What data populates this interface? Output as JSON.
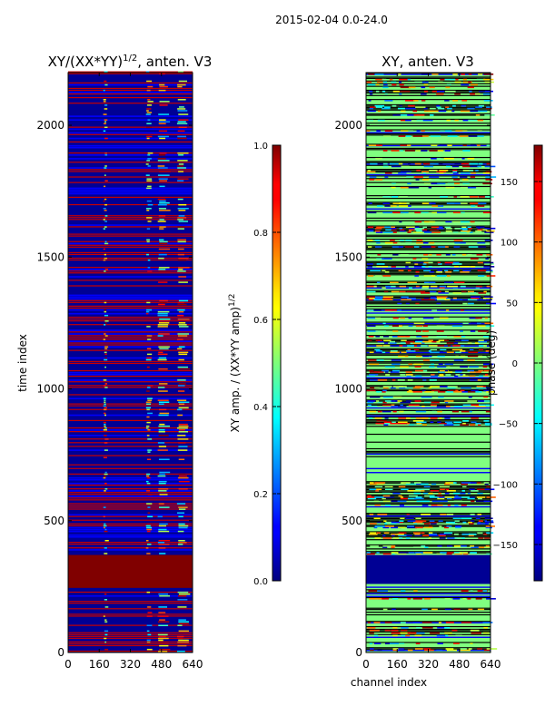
{
  "figure": {
    "suptitle": "2015-02-04 0.0-24.0"
  },
  "chart_data": [
    {
      "type": "heatmap",
      "title_prefix": "XY/(XX*YY)",
      "title_sup": "1/2",
      "title_suffix": ", anten. V3",
      "xlabel": "",
      "ylabel": "time index",
      "xlim": [
        0,
        640
      ],
      "ylim": [
        0,
        2200
      ],
      "xticks": [
        0,
        160,
        320,
        480,
        640
      ],
      "yticks": [
        0,
        500,
        1000,
        1500,
        2000
      ],
      "colorbar": {
        "label_prefix": "XY amp. / (XX*YY amp)",
        "label_sup": "1/2",
        "range": [
          0.0,
          1.0
        ],
        "ticks": [
          0.0,
          0.2,
          0.4,
          0.6,
          0.8,
          1.0
        ],
        "tick_labels": [
          "0.0",
          "0.2",
          "0.4",
          "0.6",
          "0.8",
          "1.0"
        ],
        "colormap": "jet"
      },
      "notable_regions": [
        {
          "description": "saturated block",
          "time_range": [
            245,
            370
          ],
          "value": 1.0
        }
      ]
    },
    {
      "type": "heatmap",
      "title": "XY, anten. V3",
      "xlabel": "channel index",
      "ylabel": "",
      "xlim": [
        0,
        640
      ],
      "ylim": [
        0,
        2200
      ],
      "xticks": [
        0,
        160,
        320,
        480,
        640
      ],
      "yticks": [
        0,
        500,
        1000,
        1500,
        2000
      ],
      "colorbar": {
        "label": "phase (deg)",
        "range": [
          -180,
          180
        ],
        "ticks": [
          -150,
          -100,
          -50,
          0,
          50,
          100,
          150
        ],
        "tick_labels": [
          "−150",
          "−100",
          "−50",
          "0",
          "50",
          "100",
          "150"
        ],
        "colormap": "jet"
      },
      "notable_regions": [
        {
          "description": "minimum phase block",
          "time_range": [
            260,
            370
          ],
          "value": -180
        }
      ]
    }
  ]
}
